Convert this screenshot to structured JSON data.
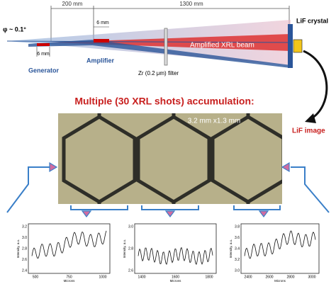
{
  "schematic": {
    "dist_generator_amplifier": "200 mm",
    "dist_amplifier_crystal": "1300 mm",
    "generator_length": "6 mm",
    "amplifier_length": "6 mm",
    "divergence": "φ ~ 0.1°",
    "crystal": "LiF crystal",
    "beam": "Amplified XRL beam",
    "filter": "Zr (0.2 μm) filter",
    "generator": "Generator",
    "amplifier": "Amplifier"
  },
  "title": "Multiple (30 XRL shots) accumulation:",
  "image": {
    "size": "3.2 mm x1.3 mm",
    "label": "LiF image"
  },
  "plots": [
    {
      "y_label": "Intensity, a.u.",
      "x_label": "Microns",
      "yticks": [
        "3.2",
        "3.0",
        "2.8",
        "2.6",
        "2.4"
      ],
      "xticks": [
        "500",
        "750",
        "1000"
      ]
    },
    {
      "y_label": "Intensity, a.u.",
      "x_label": "Microns",
      "yticks": [
        "3.0",
        "2.8",
        "2.6"
      ],
      "xticks": [
        "1400",
        "1600",
        "1800"
      ]
    },
    {
      "y_label": "Intensity, a.u.",
      "x_label": "Microns",
      "yticks": [
        "3.8",
        "3.6",
        "3.4",
        "3.2",
        "3.0"
      ],
      "xticks": [
        "2400",
        "2600",
        "2800",
        "3000"
      ]
    }
  ]
}
